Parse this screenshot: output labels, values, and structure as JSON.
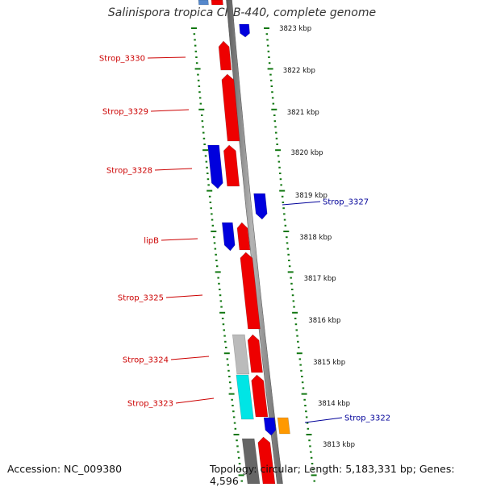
{
  "title": "Salinispora tropica CNB-440, complete genome",
  "footer": {
    "accession": "Accession: NC_009380",
    "summary": "Topology: circular; Length: 5,183,331 bp; Genes: 4,596"
  },
  "colors": {
    "forward": "#ee0000",
    "reverse": "#0000dd",
    "label_forward": "#cc0000",
    "label_reverse": "#000099",
    "tick": "#117711",
    "backbone": "#888888",
    "grey_gene": "#bbbbbb",
    "cyan_gene": "#00e5e5",
    "orange_gene": "#ff9900",
    "dark_gene": "#666666",
    "light_blue_gene": "#5588cc"
  },
  "kbp_labels": [
    "3823 kbp",
    "3822 kbp",
    "3821 kbp",
    "3820 kbp",
    "3819 kbp",
    "3818 kbp",
    "3817 kbp",
    "3816 kbp",
    "3815 kbp",
    "3814 kbp",
    "3813 kbp"
  ],
  "gene_labels": [
    {
      "text": "Strop_3330",
      "strand": "forward"
    },
    {
      "text": "Strop_3329",
      "strand": "forward"
    },
    {
      "text": "Strop_3328",
      "strand": "forward"
    },
    {
      "text": "Strop_3327",
      "strand": "reverse"
    },
    {
      "text": "lipB",
      "strand": "forward"
    },
    {
      "text": "Strop_3325",
      "strand": "forward"
    },
    {
      "text": "Strop_3324",
      "strand": "forward"
    },
    {
      "text": "Strop_3323",
      "strand": "forward"
    },
    {
      "text": "Strop_3322",
      "strand": "reverse"
    }
  ]
}
